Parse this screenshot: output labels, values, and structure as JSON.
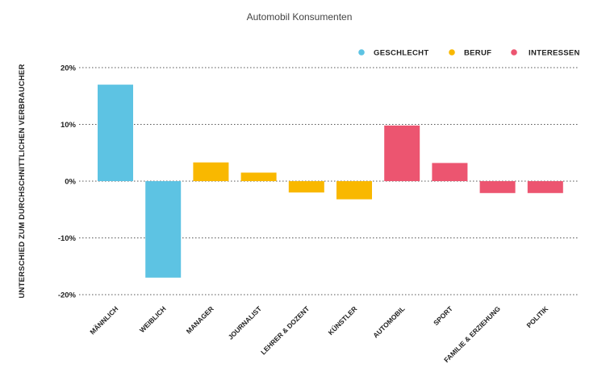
{
  "chart_data": {
    "type": "bar",
    "title": "Automobil Konsumenten",
    "ylabel": "UNTERSCHIED ZUM DURCHSCHNITTLICHEN VERBRAUCHER",
    "xlabel": "",
    "ylim": [
      -20,
      20
    ],
    "yticks": [
      20,
      10,
      0,
      -10,
      -20
    ],
    "ytick_labels": [
      "20%",
      "10%",
      "0%",
      "-10%",
      "-20%"
    ],
    "grid": true,
    "legend_position": "top-right",
    "legend": [
      {
        "name": "GESCHLECHT",
        "color": "#5dc3e3"
      },
      {
        "name": "BERUF",
        "color": "#f9b800"
      },
      {
        "name": "INTERESSEN",
        "color": "#ec5570"
      }
    ],
    "categories": [
      "MÄNNLICH",
      "WEIBLICH",
      "MANAGER",
      "JOURNALIST",
      "LEHRER & DOZENT",
      "KÜNSTLER",
      "AUTOMOBIL",
      "SPORT",
      "FAMILIE & ERZIEHUNG",
      "POLITIK"
    ],
    "values": [
      17,
      -17,
      3.3,
      1.5,
      -2,
      -3.2,
      9.8,
      3.2,
      -2.1,
      -2.1
    ],
    "groups": [
      "GESCHLECHT",
      "GESCHLECHT",
      "BERUF",
      "BERUF",
      "BERUF",
      "BERUF",
      "INTERESSEN",
      "INTERESSEN",
      "INTERESSEN",
      "INTERESSEN"
    ]
  }
}
